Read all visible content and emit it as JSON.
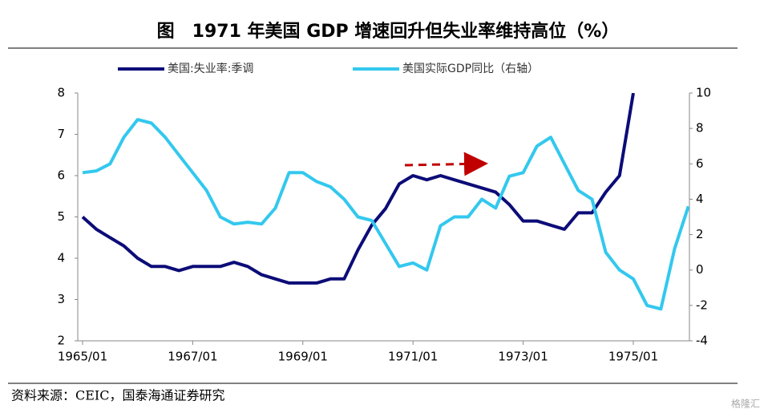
{
  "chart_data": {
    "type": "line",
    "title": "图　1971 年美国 GDP 增速回升但失业率维持高位（%）",
    "source": "资料来源：CEIC，国泰海通证券研究",
    "watermark": "格隆汇",
    "x": [
      "1965/01",
      "1965/04",
      "1965/07",
      "1965/10",
      "1966/01",
      "1966/04",
      "1966/07",
      "1966/10",
      "1967/01",
      "1967/04",
      "1967/07",
      "1967/10",
      "1968/01",
      "1968/04",
      "1968/07",
      "1968/10",
      "1969/01",
      "1969/04",
      "1969/07",
      "1969/10",
      "1970/01",
      "1970/04",
      "1970/07",
      "1970/10",
      "1971/01",
      "1971/04",
      "1971/07",
      "1971/10",
      "1972/01",
      "1972/04",
      "1972/07",
      "1972/10",
      "1973/01",
      "1973/04",
      "1973/07",
      "1973/10",
      "1974/01",
      "1974/04",
      "1974/07",
      "1974/10",
      "1975/01",
      "1975/04",
      "1975/07",
      "1975/10",
      "1976/01"
    ],
    "series": [
      {
        "name": "美国:失业率:季调",
        "color": "#0c0c78",
        "axis": "y",
        "values": [
          5.0,
          4.7,
          4.5,
          4.3,
          4.0,
          3.8,
          3.8,
          3.7,
          3.8,
          3.8,
          3.8,
          3.9,
          3.8,
          3.6,
          3.5,
          3.4,
          3.4,
          3.4,
          3.5,
          3.5,
          4.2,
          4.8,
          5.2,
          5.8,
          6.0,
          5.9,
          6.0,
          5.9,
          5.8,
          5.7,
          5.6,
          5.3,
          4.9,
          4.9,
          4.8,
          4.7,
          5.1,
          5.1,
          5.6,
          6.0,
          8.0,
          null,
          null,
          null,
          null
        ]
      },
      {
        "name": "美国实际GDP同比（右轴）",
        "color": "#33c8ee",
        "axis": "y2",
        "values": [
          5.5,
          5.6,
          6.0,
          7.5,
          8.5,
          8.3,
          7.5,
          6.5,
          5.5,
          4.5,
          3.0,
          2.6,
          2.7,
          2.6,
          3.5,
          5.5,
          5.5,
          5.0,
          4.7,
          4.0,
          3.0,
          2.8,
          1.5,
          0.2,
          0.4,
          0.0,
          2.5,
          3.0,
          3.0,
          4.0,
          3.5,
          5.3,
          5.5,
          7.0,
          7.5,
          6.0,
          4.5,
          4.0,
          1.0,
          0.0,
          -0.5,
          -2.0,
          -2.2,
          1.2,
          3.6
        ]
      }
    ],
    "xticks": [
      "1965/01",
      "1967/01",
      "1969/01",
      "1971/01",
      "1973/01",
      "1975/01"
    ],
    "ylim": [
      2,
      8
    ],
    "yticks": [
      2,
      3,
      4,
      5,
      6,
      7,
      8
    ],
    "y2lim": [
      -4,
      10
    ],
    "y2ticks": [
      -4,
      -2,
      0,
      2,
      4,
      6,
      8,
      10
    ]
  }
}
